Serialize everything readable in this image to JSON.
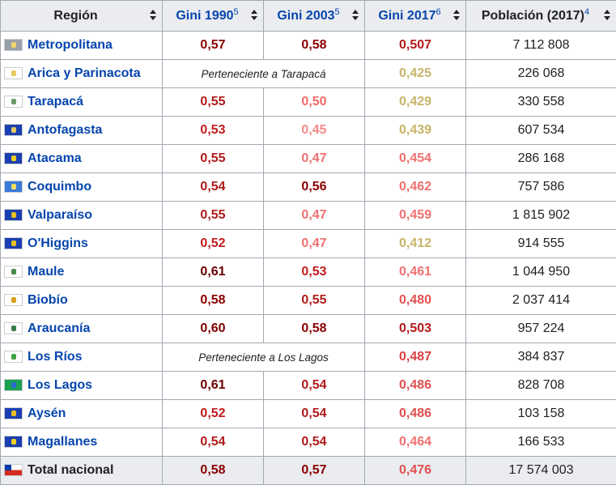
{
  "headers": [
    {
      "label": "Región",
      "link": false,
      "sup": ""
    },
    {
      "label": "Gini 1990",
      "link": true,
      "sup": "5"
    },
    {
      "label": "Gini 2003",
      "link": true,
      "sup": "5"
    },
    {
      "label": "Gini 2017",
      "link": true,
      "sup": "6"
    },
    {
      "label": "Población (2017)",
      "link": false,
      "sup": "4"
    }
  ],
  "rows": [
    {
      "region": "Metropolitana",
      "flag": "metropolitana-flag",
      "flag_colors": [
        "#9aa0a8",
        "#f2d36a"
      ],
      "g1990": "0,57",
      "g2003": "0,58",
      "g2017": "0,507",
      "pop": "7 112 808",
      "colors": [
        "#8b0000",
        "#8b0000",
        "#b21a1a"
      ]
    },
    {
      "region": "Arica y Parinacota",
      "flag": "arica-flag",
      "flag_colors": [
        "#ffffff",
        "#e8c860"
      ],
      "merged": "Perteneciente a Tarapacá",
      "g2017": "0,425",
      "pop": "226 068",
      "colors": [
        "",
        "",
        "#c8b468"
      ]
    },
    {
      "region": "Tarapacá",
      "flag": "tarapaca-flag",
      "flag_colors": [
        "#ffffff",
        "#6a9a6a"
      ],
      "g1990": "0,55",
      "g2003": "0,50",
      "g2017": "0,429",
      "pop": "330 558",
      "colors": [
        "#b01a1a",
        "#f06a6a",
        "#c8b468"
      ]
    },
    {
      "region": "Antofagasta",
      "flag": "antofagasta-flag",
      "flag_colors": [
        "#1a3fb0",
        "#e8c860"
      ],
      "g1990": "0,53",
      "g2003": "0,45",
      "g2017": "0,439",
      "pop": "607 534",
      "colors": [
        "#c01c1c",
        "#f28a8a",
        "#c8b468"
      ]
    },
    {
      "region": "Atacama",
      "flag": "atacama-flag",
      "flag_colors": [
        "#1a3fb0",
        "#f0d020"
      ],
      "g1990": "0,55",
      "g2003": "0,47",
      "g2017": "0,454",
      "pop": "286 168",
      "colors": [
        "#b01a1a",
        "#f07070",
        "#f07070"
      ]
    },
    {
      "region": "Coquimbo",
      "flag": "coquimbo-flag",
      "flag_colors": [
        "#3a7ad8",
        "#f0e060"
      ],
      "g1990": "0,54",
      "g2003": "0,56",
      "g2017": "0,462",
      "pop": "757 586",
      "colors": [
        "#b01a1a",
        "#8b0000",
        "#f07070"
      ]
    },
    {
      "region": "Valparaíso",
      "flag": "valparaiso-flag",
      "flag_colors": [
        "#1a3fb0",
        "#e8c020"
      ],
      "g1990": "0,55",
      "g2003": "0,47",
      "g2017": "0,459",
      "pop": "1 815 902",
      "colors": [
        "#b01a1a",
        "#f07070",
        "#f07070"
      ]
    },
    {
      "region": "O'Higgins",
      "flag": "ohiggins-flag",
      "flag_colors": [
        "#1a3fb0",
        "#e8c020"
      ],
      "g1990": "0,52",
      "g2003": "0,47",
      "g2017": "0,412",
      "pop": "914 555",
      "colors": [
        "#c01c1c",
        "#f07070",
        "#c8b468"
      ]
    },
    {
      "region": "Maule",
      "flag": "maule-flag",
      "flag_colors": [
        "#ffffff",
        "#4a8a4a"
      ],
      "g1990": "0,61",
      "g2003": "0,53",
      "g2017": "0,461",
      "pop": "1 044 950",
      "colors": [
        "#6b0000",
        "#c01c1c",
        "#f07070"
      ]
    },
    {
      "region": "Biobío",
      "flag": "biobio-flag",
      "flag_colors": [
        "#ffffff",
        "#d8a020"
      ],
      "g1990": "0,58",
      "g2003": "0,55",
      "g2017": "0,480",
      "pop": "2 037 414",
      "colors": [
        "#8b0000",
        "#b01a1a",
        "#e05050"
      ]
    },
    {
      "region": "Araucanía",
      "flag": "araucania-flag",
      "flag_colors": [
        "#ffffff",
        "#3a7a4a"
      ],
      "g1990": "0,60",
      "g2003": "0,58",
      "g2017": "0,503",
      "pop": "957 224",
      "colors": [
        "#7b0000",
        "#8b0000",
        "#b21a1a"
      ]
    },
    {
      "region": "Los Ríos",
      "flag": "los-rios-flag",
      "flag_colors": [
        "#ffffff",
        "#40a040"
      ],
      "merged": "Perteneciente a Los Lagos",
      "g2017": "0,487",
      "pop": "384 837",
      "colors": [
        "",
        "",
        "#d84040"
      ]
    },
    {
      "region": "Los Lagos",
      "flag": "los-lagos-flag",
      "flag_colors": [
        "#1aa050",
        "#2a6ad8"
      ],
      "g1990": "0,61",
      "g2003": "0,54",
      "g2017": "0,486",
      "pop": "828 708",
      "colors": [
        "#6b0000",
        "#b01a1a",
        "#e05050"
      ]
    },
    {
      "region": "Aysén",
      "flag": "aysen-flag",
      "flag_colors": [
        "#1a3fb0",
        "#e8c020"
      ],
      "g1990": "0,52",
      "g2003": "0,54",
      "g2017": "0,486",
      "pop": "103 158",
      "colors": [
        "#c01c1c",
        "#b01a1a",
        "#e05050"
      ]
    },
    {
      "region": "Magallanes",
      "flag": "magallanes-flag",
      "flag_colors": [
        "#1a3fb0",
        "#f0d020"
      ],
      "g1990": "0,54",
      "g2003": "0,54",
      "g2017": "0,464",
      "pop": "166 533",
      "colors": [
        "#b01a1a",
        "#b01a1a",
        "#f07070"
      ]
    }
  ],
  "total": {
    "region": "Total nacional",
    "flag": "chile-flag",
    "g1990": "0,58",
    "g2003": "0,57",
    "g2017": "0,476",
    "pop": "17 574 003",
    "colors": [
      "#8b0000",
      "#8b0000",
      "#e05050"
    ]
  }
}
